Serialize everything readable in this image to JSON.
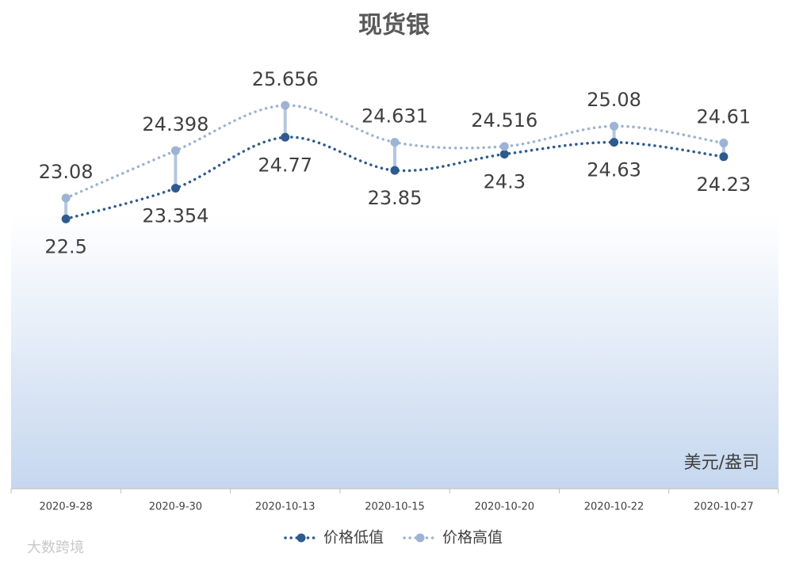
{
  "chart_data": {
    "type": "line",
    "title": "现货银",
    "unit_label": "美元/盎司",
    "categories": [
      "2020-9-28",
      "2020-9-30",
      "2020-10-13",
      "2020-10-15",
      "2020-10-20",
      "2020-10-22",
      "2020-10-27"
    ],
    "series": [
      {
        "name": "价格低值",
        "color": "#2e5b8e",
        "values": [
          22.5,
          23.354,
          24.77,
          23.85,
          24.3,
          24.63,
          24.23
        ]
      },
      {
        "name": "价格高值",
        "color": "#9db3d3",
        "values": [
          23.08,
          24.398,
          25.656,
          24.631,
          24.516,
          25.08,
          24.61
        ]
      }
    ],
    "ylim": [
      15,
      27
    ],
    "high_low_lines": true,
    "legend": "bottom",
    "watermark": "大数跨境"
  }
}
